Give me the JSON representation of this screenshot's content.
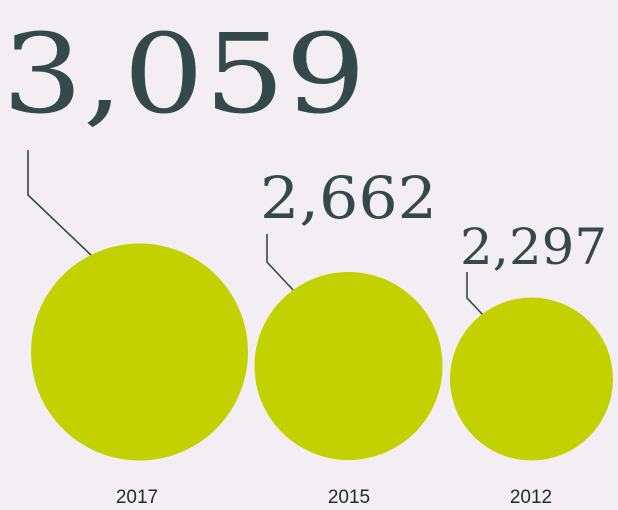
{
  "chart_data": {
    "type": "bubble",
    "categories": [
      "2017",
      "2015",
      "2012"
    ],
    "values": [
      3059,
      2662,
      2297
    ],
    "value_labels": [
      "3,059",
      "2,662",
      "2,297"
    ],
    "colors": {
      "bubble": "#c4d100",
      "text": "#33494a",
      "year_text": "#1f2a2b",
      "background": "#f3eef4"
    },
    "grid": false,
    "legend": "none"
  }
}
